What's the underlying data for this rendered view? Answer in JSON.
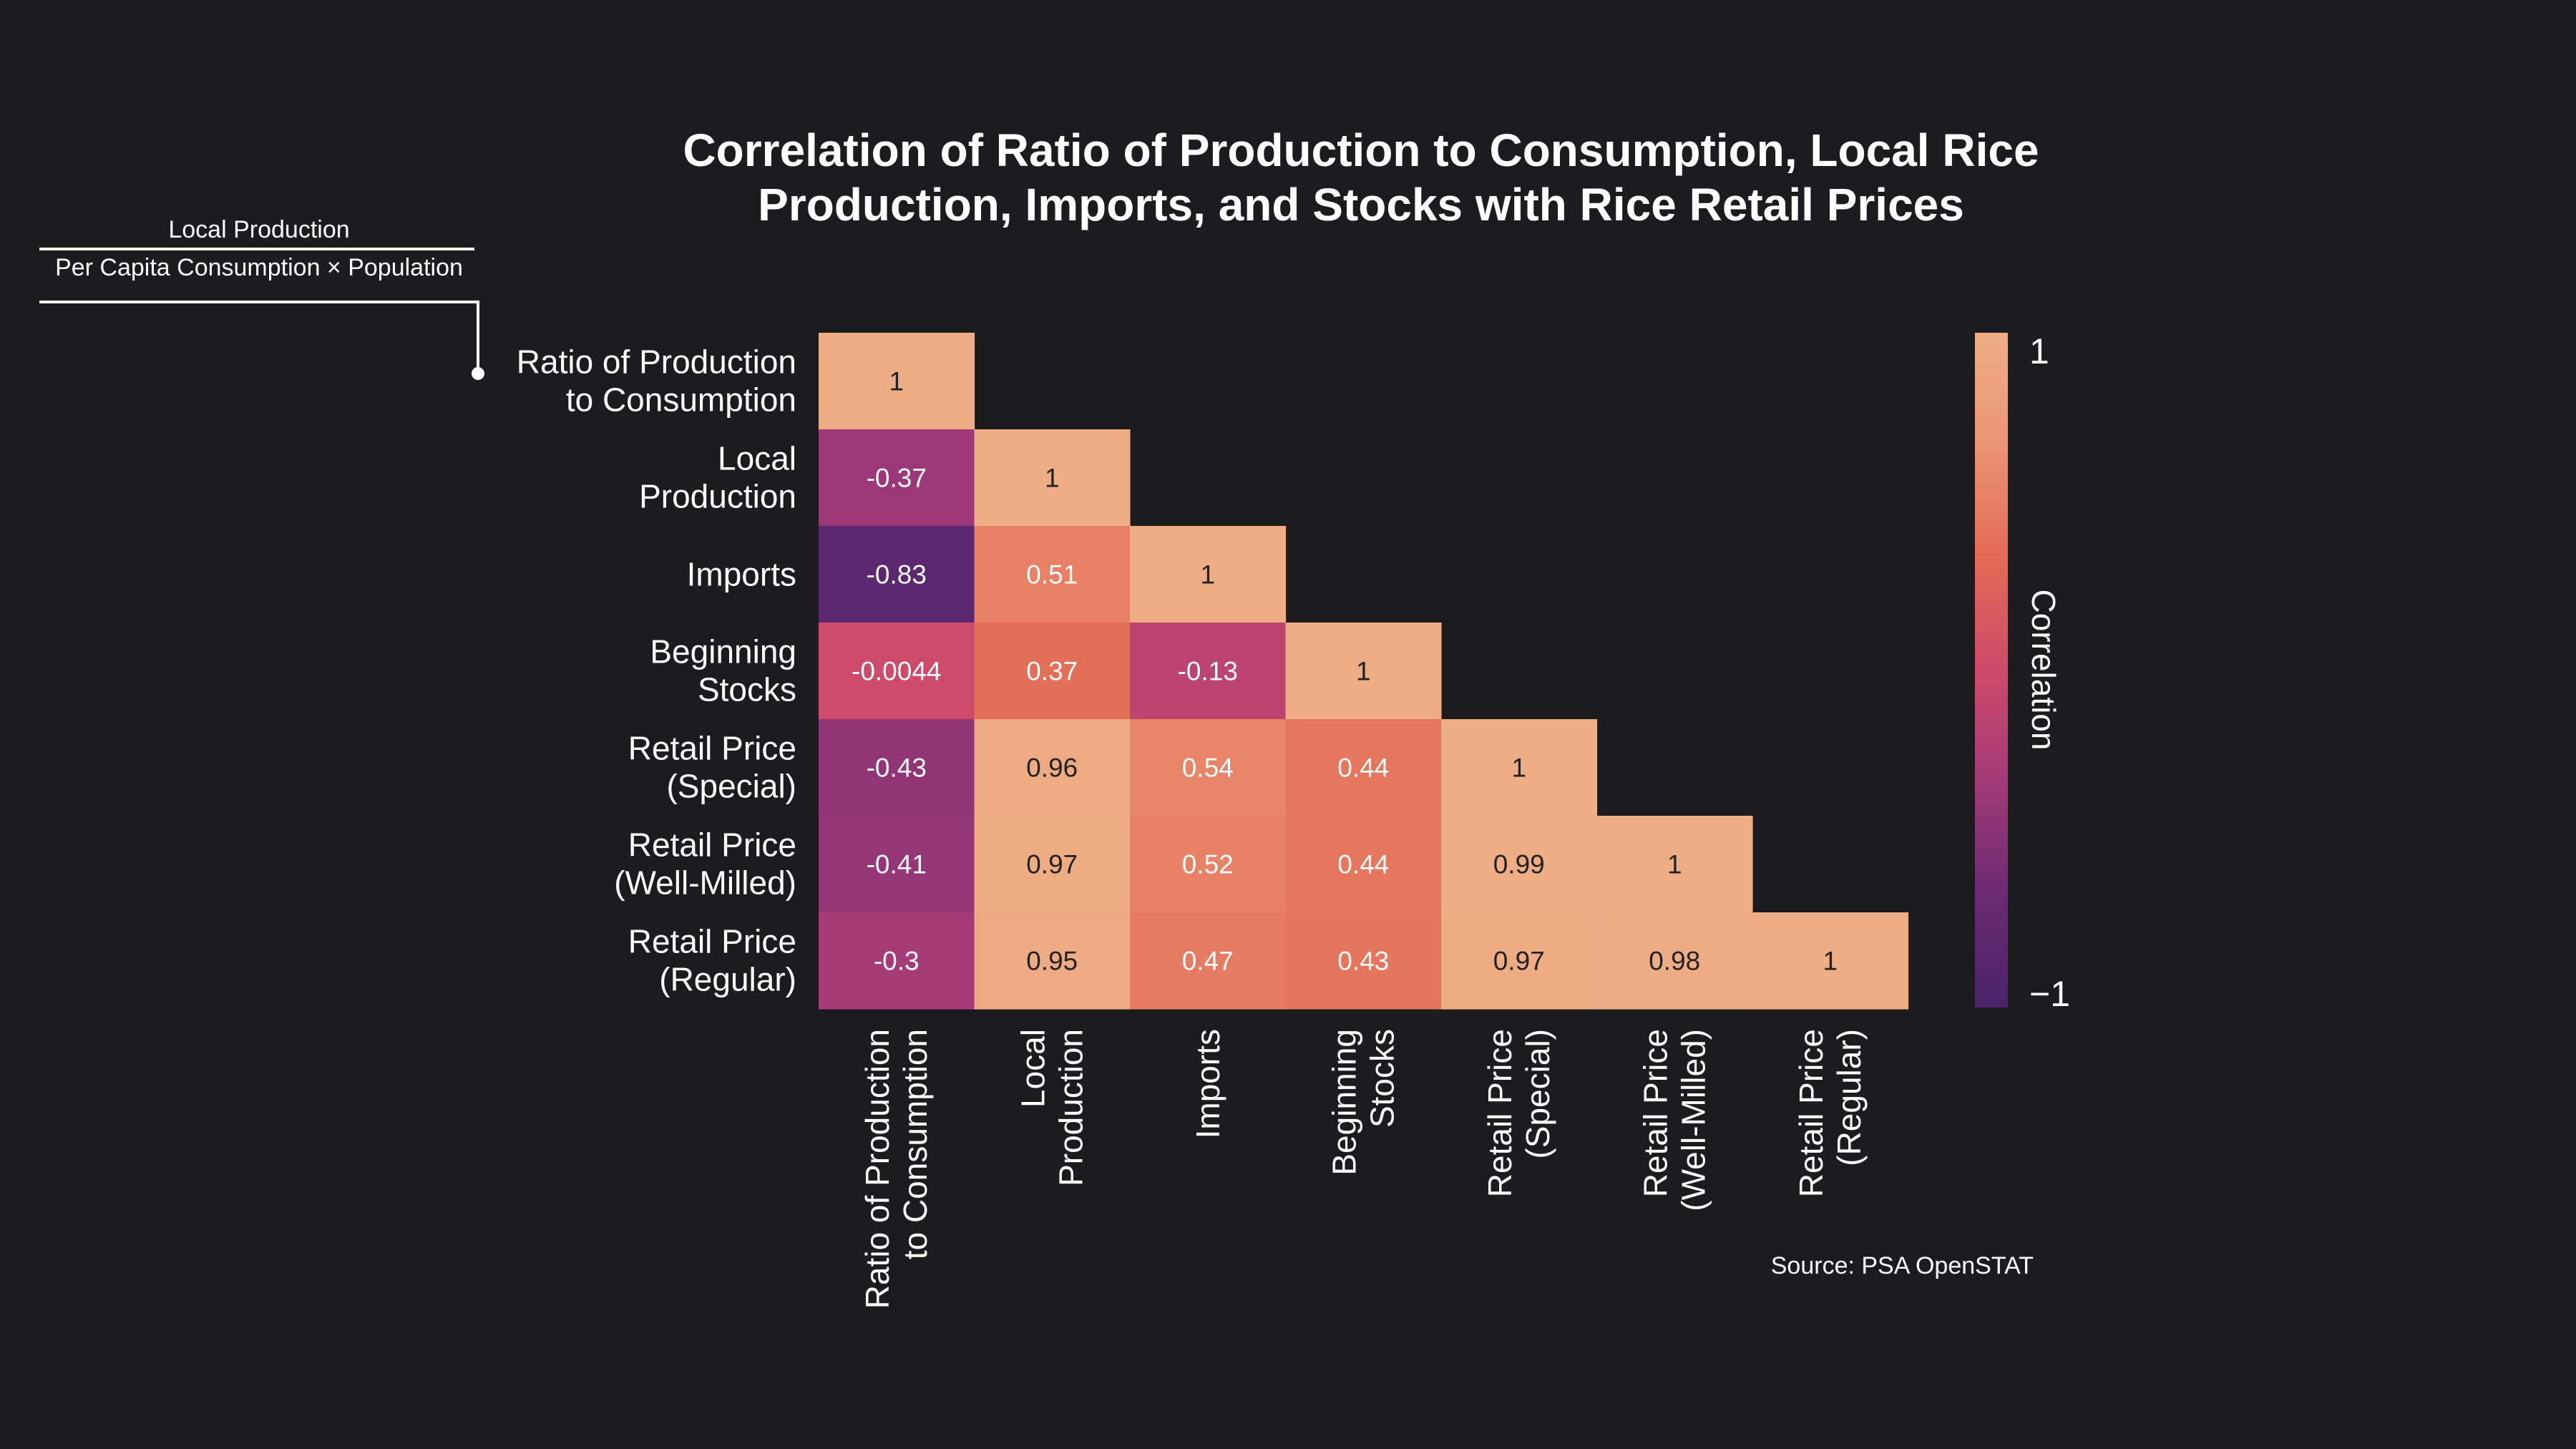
{
  "title": {
    "line1": "Correlation of Ratio of Production to Consumption, Local Rice",
    "line2": "Production, Imports, and Stocks with Rice Retail Prices"
  },
  "annotation": {
    "numerator": "Local Production",
    "denominator": "Per Capita Consumption × Population"
  },
  "source": "Source: PSA OpenSTAT",
  "colors": {
    "background": "#1c1b1e",
    "text": "#ffffff",
    "scale": [
      "#4a2369",
      "#6b2a72",
      "#a23a78",
      "#cf4a6a",
      "#e36a55",
      "#eb9474",
      "#eeae85"
    ]
  },
  "chart_data": {
    "type": "heatmap",
    "title": "Correlation of Ratio of Production to Consumption, Local Rice Production, Imports, and Stocks with Rice Retail Prices",
    "layout": "lower-triangle",
    "variables": [
      [
        "Ratio of Production",
        "to Consumption"
      ],
      [
        "Local",
        "Production"
      ],
      [
        "Imports"
      ],
      [
        "Beginning",
        "Stocks"
      ],
      [
        "Retail Price",
        "(Special)"
      ],
      [
        "Retail Price",
        "(Well-Milled)"
      ],
      [
        "Retail Price",
        "(Regular)"
      ]
    ],
    "values": [
      [
        1
      ],
      [
        -0.37,
        1
      ],
      [
        -0.83,
        0.51,
        1
      ],
      [
        -0.0044,
        0.37,
        -0.13,
        1
      ],
      [
        -0.43,
        0.96,
        0.54,
        0.44,
        1
      ],
      [
        -0.41,
        0.97,
        0.52,
        0.44,
        0.99,
        1
      ],
      [
        -0.3,
        0.95,
        0.47,
        0.43,
        0.97,
        0.98,
        1
      ]
    ],
    "colorbar": {
      "label": "Correlation",
      "range": [
        -1,
        1
      ],
      "tick_labels": [
        "1",
        "−1"
      ]
    }
  }
}
